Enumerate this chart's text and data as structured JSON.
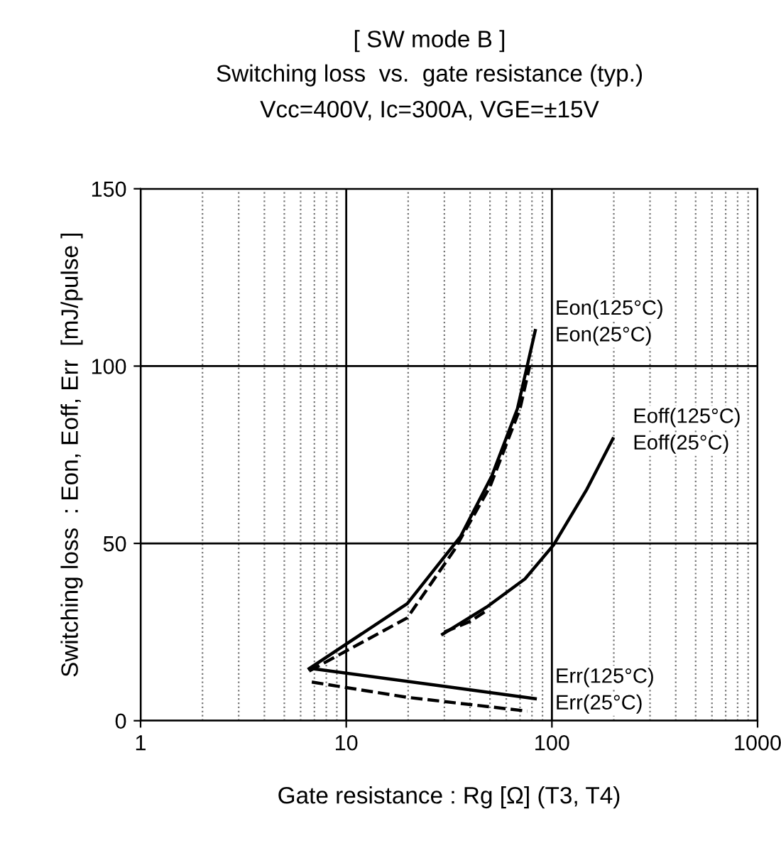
{
  "chart_data": {
    "type": "line",
    "title": "[ SW mode B ]",
    "subtitle": "Switching loss  vs.  gate resistance (typ.)\nVcc=400V, Ic=300A, VGE=±15V",
    "xlabel": "Gate resistance : Rg [Ω] (T3, T4)",
    "ylabel": "Switching loss  : Eon, Eoff, Err  [mJ/pulse ]",
    "log": "x",
    "xlim": [
      1,
      1000
    ],
    "xticks": [
      1,
      10,
      100,
      1000
    ],
    "ylim": [
      0,
      150
    ],
    "yticks": [
      0,
      50,
      100,
      150
    ],
    "grid": true,
    "legend": false,
    "series": [
      {
        "name": "Eon(125°C)",
        "color": "#000000",
        "line_style": "solid",
        "x": [
          6.6,
          19.8,
          36,
          51,
          68,
          83
        ],
        "values": [
          14.7,
          33,
          52,
          69,
          88,
          110
        ]
      },
      {
        "name": "Eon(25°C)",
        "color": "#000000",
        "line_style": "dashed",
        "x": [
          6.6,
          19.8,
          33.4,
          50,
          70,
          78
        ],
        "values": [
          14,
          29,
          48,
          66,
          88,
          100
        ]
      },
      {
        "name": "Eoff(125°C)",
        "color": "#000000",
        "line_style": "solid",
        "x": [
          29.4,
          48,
          74,
          102,
          147,
          198
        ],
        "values": [
          24.4,
          32,
          40,
          49.6,
          65,
          79.5
        ]
      },
      {
        "name": "Eoff(25°C)",
        "color": "#000000",
        "line_style": "dashed",
        "x": [
          30,
          40,
          48
        ],
        "values": [
          25,
          28,
          31
        ]
      },
      {
        "name": "Err(125°C)",
        "color": "#000000",
        "line_style": "solid",
        "x": [
          6.8,
          29.9,
          83
        ],
        "values": [
          14.7,
          9.7,
          6.2
        ]
      },
      {
        "name": "Err(25°C)",
        "color": "#000000",
        "line_style": "dashed",
        "x": [
          6.8,
          19.8,
          30,
          76
        ],
        "values": [
          10.9,
          6.6,
          5.4,
          2.7
        ]
      }
    ]
  }
}
